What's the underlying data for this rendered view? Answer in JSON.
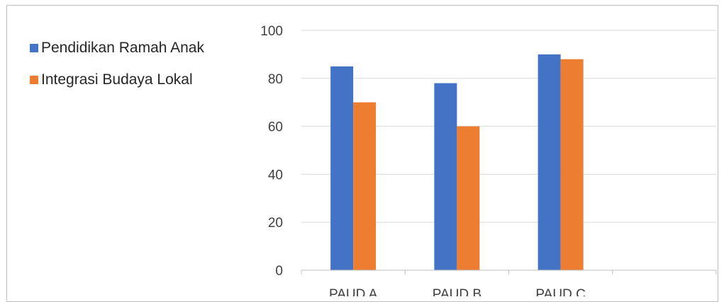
{
  "chart_data": {
    "type": "bar",
    "title": "",
    "xlabel": "",
    "ylabel": "",
    "categories": [
      "PAUD A",
      "PAUD B",
      "PAUD C",
      ""
    ],
    "series": [
      {
        "name": "Pendidikan Ramah Anak",
        "values": [
          85,
          78,
          90,
          null
        ],
        "color": "#4472c4"
      },
      {
        "name": "Integrasi Budaya Lokal",
        "values": [
          70,
          60,
          88,
          null
        ],
        "color": "#ed7d31"
      }
    ],
    "ylim": [
      0,
      100
    ],
    "yticks": [
      0,
      20,
      40,
      60,
      80,
      100
    ],
    "grid": true,
    "legend_position": "left"
  }
}
